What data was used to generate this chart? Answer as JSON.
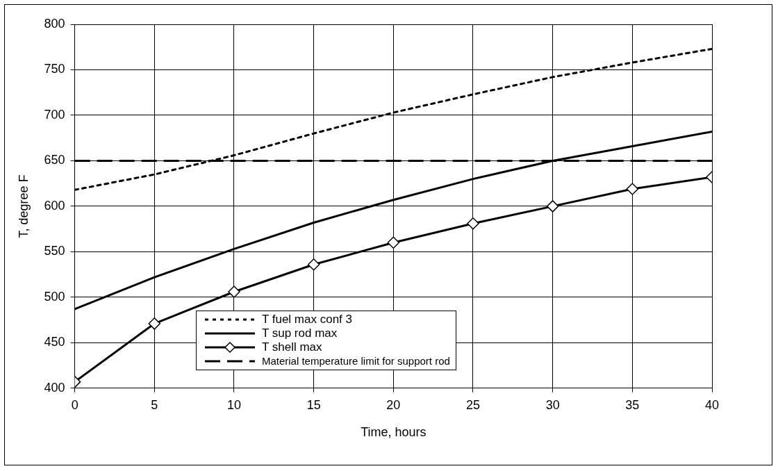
{
  "chart_data": {
    "type": "line",
    "xlabel": "Time, hours",
    "ylabel": "T, degree F",
    "x": [
      0,
      5,
      10,
      15,
      20,
      25,
      30,
      35,
      40
    ],
    "series": [
      {
        "name": "T fuel max conf 3",
        "color": "#000000",
        "line_style": "dotted",
        "marker": "none",
        "values": [
          618,
          635,
          656,
          680,
          703,
          723,
          742,
          758,
          773
        ]
      },
      {
        "name": "T sup rod max",
        "color": "#000000",
        "line_style": "solid",
        "marker": "none",
        "values": [
          487,
          522,
          553,
          582,
          607,
          630,
          650,
          666,
          682
        ]
      },
      {
        "name": "T shell max",
        "color": "#000000",
        "line_style": "solid",
        "marker": "diamond",
        "values": [
          407,
          471,
          506,
          536,
          560,
          581,
          600,
          619,
          632
        ]
      }
    ],
    "ref_lines": [
      {
        "axis": "y",
        "value": 650,
        "label": "Material temperature limit for support rod",
        "color": "#000000",
        "line_style": "dashed"
      }
    ],
    "xlim": [
      0,
      40
    ],
    "xticks": [
      0,
      5,
      10,
      15,
      20,
      25,
      30,
      35,
      40
    ],
    "ylim": [
      400,
      800
    ],
    "yticks": [
      400,
      450,
      500,
      550,
      600,
      650,
      700,
      750,
      800
    ],
    "grid": true,
    "legend": "bottom"
  }
}
